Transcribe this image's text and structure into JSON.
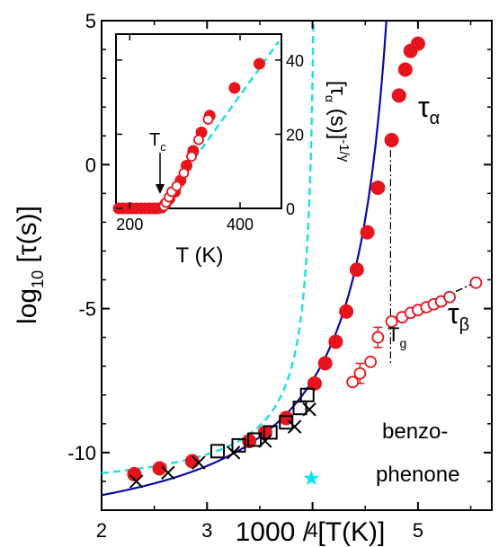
{
  "chart_data": [
    {
      "type": "scatter",
      "xlabel": "1000 / [T(K)]",
      "ylabel": "log10 [τ(s)]",
      "ylabel_main": "log",
      "ylabel_sub": "10",
      "ylabel_rest": " [τ(s)]",
      "xlim": [
        2,
        5.7
      ],
      "ylim": [
        -12,
        5
      ],
      "xticks": [
        2,
        3,
        4,
        5
      ],
      "xtick_labels": [
        "2",
        "3",
        "4",
        "5"
      ],
      "yticks": [
        5,
        0,
        -5,
        -10
      ],
      "ytick_labels": [
        "5",
        "0",
        "-5",
        "-10"
      ],
      "grid": false,
      "annotations": {
        "tau_alpha": {
          "main": "τ",
          "sub": "α"
        },
        "tau_beta": {
          "main": "τ",
          "sub": "β"
        },
        "tg": {
          "main": "T",
          "sub": "g"
        },
        "material_line1": "benzo-",
        "material_line2": "phenone"
      },
      "series": [
        {
          "marker": "filled-circle",
          "color": "#e8141c",
          "points": [
            [
              2.31,
              -10.75
            ],
            [
              2.55,
              -10.55
            ],
            [
              2.86,
              -10.3
            ],
            [
              3.4,
              -9.6
            ],
            [
              3.55,
              -9.3
            ],
            [
              3.75,
              -8.8
            ],
            [
              4.02,
              -7.6
            ],
            [
              4.12,
              -6.9
            ],
            [
              4.22,
              -6.15
            ],
            [
              4.32,
              -5.1
            ],
            [
              4.42,
              -3.65
            ],
            [
              4.52,
              -2.35
            ],
            [
              4.62,
              -0.8
            ],
            [
              4.75,
              0.85
            ],
            [
              4.82,
              2.4
            ],
            [
              4.88,
              3.3
            ],
            [
              4.93,
              3.95
            ],
            [
              5.0,
              4.2
            ]
          ]
        },
        {
          "marker": "open-circle",
          "color": "#e8141c",
          "points": [
            [
              4.38,
              -7.55
            ],
            [
              4.45,
              -7.25
            ],
            [
              4.55,
              -6.85
            ],
            [
              4.62,
              -6.0
            ],
            [
              4.75,
              -5.45
            ],
            [
              4.85,
              -5.3
            ],
            [
              4.93,
              -5.15
            ],
            [
              5.0,
              -5.05
            ],
            [
              5.08,
              -4.95
            ],
            [
              5.15,
              -4.85
            ],
            [
              5.22,
              -4.75
            ],
            [
              5.3,
              -4.6
            ],
            [
              5.55,
              -4.1
            ]
          ]
        },
        {
          "marker": "open-square",
          "color": "#000000",
          "points": [
            [
              3.1,
              -9.95
            ],
            [
              3.3,
              -9.75
            ],
            [
              3.45,
              -9.55
            ],
            [
              3.6,
              -9.3
            ],
            [
              3.75,
              -8.95
            ],
            [
              3.88,
              -8.45
            ],
            [
              3.95,
              -8.0
            ]
          ]
        },
        {
          "marker": "cross",
          "color": "#000000",
          "points": [
            [
              2.33,
              -11.0
            ],
            [
              2.63,
              -10.7
            ],
            [
              2.92,
              -10.35
            ],
            [
              3.25,
              -10.0
            ],
            [
              3.55,
              -9.6
            ],
            [
              3.83,
              -9.1
            ],
            [
              3.97,
              -8.5
            ]
          ]
        },
        {
          "marker": "star",
          "color": "#00e5ee",
          "points": [
            [
              3.99,
              -10.9
            ]
          ]
        }
      ],
      "fit_color": "#0a0aa6",
      "fit_dash_color": "#22e0e0",
      "beta_fit_color": "#000000",
      "error_bars": [
        {
          "x": 4.45,
          "y": -7.25,
          "low": -7.6,
          "high": -6.9
        },
        {
          "x": 4.62,
          "y": -6.0,
          "low": -6.35,
          "high": -5.65
        }
      ]
    },
    {
      "type": "scatter",
      "xlabel": "T (K)",
      "ylabel": "[τα (s)]^-1/γ",
      "xlim": [
        175,
        475
      ],
      "ylim": [
        0,
        47
      ],
      "xticks": [
        200,
        400
      ],
      "xtick_labels": [
        "200",
        "400"
      ],
      "yticks": [
        0,
        20,
        40
      ],
      "ytick_labels": [
        "0",
        "20",
        "40"
      ],
      "grid": false,
      "tc_label": {
        "main": "T",
        "sub": "c"
      },
      "series": [
        {
          "marker": "filled-circle",
          "color": "#e8141c",
          "points": [
            [
              180,
              0
            ],
            [
              188,
              0
            ],
            [
              196,
              0
            ],
            [
              204,
              0
            ],
            [
              212,
              0
            ],
            [
              220,
              0
            ],
            [
              228,
              0
            ],
            [
              236,
              0
            ],
            [
              244,
              0
            ],
            [
              250,
              0
            ],
            [
              258,
              0.2
            ],
            [
              265,
              1.3
            ],
            [
              272,
              2.6
            ],
            [
              282,
              4.5
            ],
            [
              292,
              7.5
            ],
            [
              303,
              11.5
            ],
            [
              315,
              15.5
            ],
            [
              330,
              20.5
            ],
            [
              345,
              25
            ],
            [
              390,
              32.5
            ],
            [
              435,
              39
            ]
          ]
        },
        {
          "marker": "open-circle",
          "color": "#e8141c",
          "points": [
            [
              262,
              0.6
            ],
            [
              266,
              1.6
            ],
            [
              271,
              3.0
            ],
            [
              276,
              4.5
            ],
            [
              285,
              6.0
            ],
            [
              298,
              9.5
            ],
            [
              312,
              14.0
            ],
            [
              325,
              18.5
            ],
            [
              342,
              24.0
            ]
          ]
        }
      ],
      "fit_line": [
        [
          255,
          0.5
        ],
        [
          470,
          45
        ]
      ]
    }
  ]
}
